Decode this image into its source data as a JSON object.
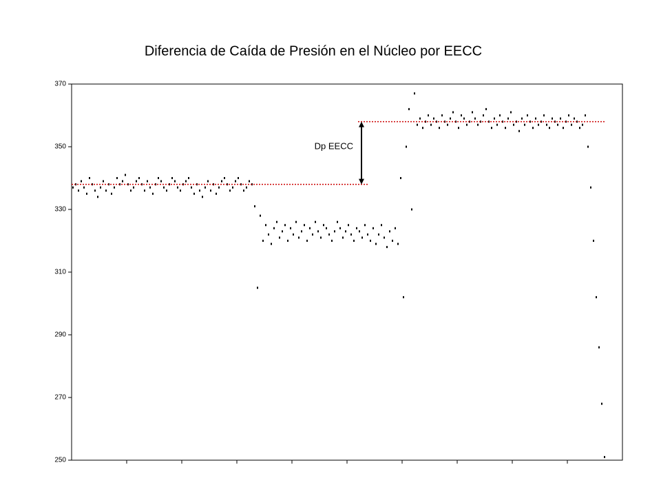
{
  "chart_data": {
    "type": "scatter",
    "title": "Diferencia de Caída de Presión en el Núcleo por EECC",
    "color": "#000000",
    "ylim": [
      250,
      370
    ],
    "yticks": [
      250,
      270,
      290,
      310,
      330,
      350,
      370
    ],
    "values": [
      337,
      338,
      336,
      339,
      337,
      335,
      340,
      338,
      336,
      334,
      337,
      339,
      336,
      338,
      335,
      337,
      340,
      338,
      339,
      341,
      338,
      336,
      337,
      339,
      340,
      338,
      336,
      339,
      337,
      335,
      338,
      340,
      339,
      337,
      336,
      338,
      340,
      339,
      337,
      336,
      338,
      339,
      340,
      337,
      335,
      338,
      336,
      334,
      337,
      339,
      336,
      338,
      335,
      337,
      339,
      340,
      338,
      336,
      337,
      339,
      340,
      338,
      336,
      337,
      339,
      338,
      331,
      305,
      328,
      320,
      325,
      322,
      319,
      324,
      326,
      321,
      323,
      325,
      320,
      324,
      322,
      326,
      321,
      323,
      325,
      320,
      324,
      322,
      326,
      323,
      321,
      325,
      324,
      322,
      320,
      323,
      326,
      324,
      321,
      323,
      325,
      322,
      320,
      324,
      323,
      321,
      325,
      322,
      320,
      324,
      319,
      322,
      325,
      321,
      318,
      323,
      320,
      324,
      319,
      340,
      302,
      350,
      362,
      330,
      367,
      357,
      359,
      356,
      358,
      360,
      357,
      359,
      358,
      356,
      360,
      358,
      357,
      359,
      361,
      358,
      356,
      360,
      359,
      357,
      358,
      361,
      359,
      357,
      358,
      360,
      362,
      358,
      356,
      359,
      357,
      360,
      358,
      356,
      359,
      361,
      357,
      358,
      355,
      359,
      357,
      360,
      358,
      356,
      359,
      357,
      358,
      360,
      357,
      356,
      359,
      358,
      357,
      359,
      356,
      358,
      360,
      357,
      359,
      358,
      356,
      357,
      360,
      350,
      337,
      320,
      302,
      286,
      268,
      251
    ],
    "reference_lines": [
      {
        "value": 338,
        "color": "#cc0000"
      },
      {
        "value": 358,
        "color": "#cc0000"
      }
    ],
    "annotation": "Dp EECC"
  }
}
